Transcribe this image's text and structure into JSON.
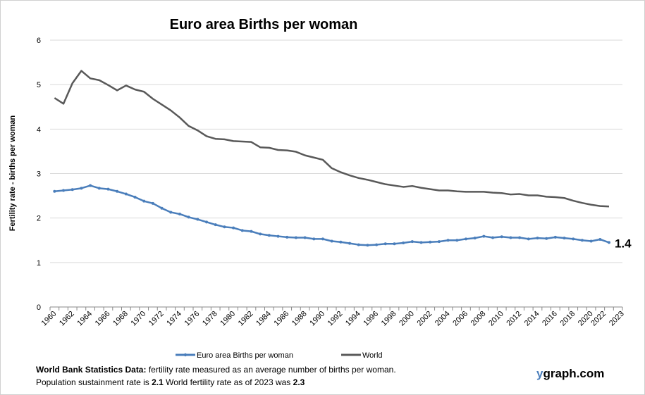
{
  "chart_data": {
    "type": "line",
    "title": "Euro area Births per woman",
    "xlabel": "",
    "ylabel": "Fertility rate  - births per woman",
    "ylim": [
      0,
      6
    ],
    "yticks": [
      "0",
      "1",
      "2",
      "3",
      "4",
      "5",
      "6"
    ],
    "grid": true,
    "legend_position": "bottom",
    "x": [
      1960,
      1961,
      1962,
      1963,
      1964,
      1965,
      1966,
      1967,
      1968,
      1969,
      1970,
      1971,
      1972,
      1973,
      1974,
      1975,
      1976,
      1977,
      1978,
      1979,
      1980,
      1981,
      1982,
      1983,
      1984,
      1985,
      1986,
      1987,
      1988,
      1989,
      1990,
      1991,
      1992,
      1993,
      1994,
      1995,
      1996,
      1997,
      1998,
      1999,
      2000,
      2001,
      2002,
      2003,
      2004,
      2005,
      2006,
      2007,
      2008,
      2009,
      2010,
      2011,
      2012,
      2013,
      2014,
      2015,
      2016,
      2017,
      2018,
      2019,
      2020,
      2021,
      2022,
      2023
    ],
    "xtick_labels": [
      "1960",
      "1962",
      "1964",
      "1966",
      "1968",
      "1970",
      "1972",
      "1974",
      "1976",
      "1978",
      "1980",
      "1982",
      "1984",
      "1986",
      "1988",
      "1990",
      "1992",
      "1994",
      "1996",
      "1998",
      "2000",
      "2002",
      "2004",
      "2006",
      "2008",
      "2010",
      "2012",
      "2014",
      "2016",
      "2018",
      "2020",
      "2022",
      "2023"
    ],
    "series": [
      {
        "name": "Euro area Births per woman",
        "color": "#4a7ebb",
        "marker": true,
        "values": [
          2.6,
          2.62,
          2.64,
          2.67,
          2.73,
          2.67,
          2.65,
          2.6,
          2.54,
          2.47,
          2.38,
          2.33,
          2.22,
          2.13,
          2.09,
          2.02,
          1.97,
          1.91,
          1.85,
          1.8,
          1.78,
          1.72,
          1.7,
          1.64,
          1.61,
          1.59,
          1.57,
          1.56,
          1.56,
          1.53,
          1.53,
          1.48,
          1.46,
          1.43,
          1.4,
          1.39,
          1.4,
          1.42,
          1.42,
          1.44,
          1.47,
          1.45,
          1.46,
          1.47,
          1.5,
          1.5,
          1.53,
          1.55,
          1.59,
          1.56,
          1.58,
          1.56,
          1.56,
          1.53,
          1.55,
          1.54,
          1.57,
          1.55,
          1.53,
          1.5,
          1.48,
          1.52,
          1.45,
          null
        ]
      },
      {
        "name": "World",
        "color": "#595959",
        "marker": false,
        "values": [
          4.7,
          4.57,
          5.03,
          5.31,
          5.14,
          5.1,
          4.99,
          4.87,
          4.98,
          4.89,
          4.84,
          4.68,
          4.55,
          4.42,
          4.26,
          4.07,
          3.97,
          3.84,
          3.78,
          3.77,
          3.73,
          3.72,
          3.71,
          3.59,
          3.58,
          3.53,
          3.52,
          3.49,
          3.41,
          3.36,
          3.31,
          3.12,
          3.03,
          2.96,
          2.9,
          2.86,
          2.81,
          2.76,
          2.73,
          2.7,
          2.72,
          2.68,
          2.65,
          2.62,
          2.62,
          2.6,
          2.59,
          2.59,
          2.59,
          2.57,
          2.56,
          2.53,
          2.54,
          2.51,
          2.51,
          2.48,
          2.47,
          2.45,
          2.39,
          2.34,
          2.3,
          2.27,
          2.26,
          null
        ]
      }
    ],
    "annotation": "1.4"
  },
  "footer": {
    "line1_bold": "World Bank  Statistics  Data:",
    "line1_text": " fertility rate measured as an average number  of births per woman.",
    "line2_a": "Population sustainment rate is ",
    "line2_b": "2.1",
    "line2_c": "   World fertility rate as of 2023 was ",
    "line2_d": "2.3"
  },
  "brand": {
    "y": "y",
    "rest": "graph.com"
  }
}
